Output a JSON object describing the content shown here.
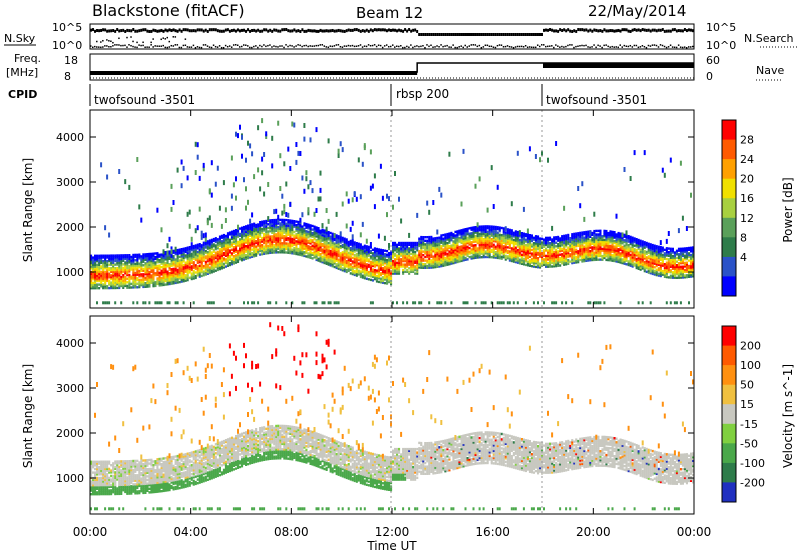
{
  "header": {
    "station": "Blackstone (fitACF)",
    "beam": "Beam 12",
    "date": "22/May/2014"
  },
  "top_panels": {
    "nsky_label": "N.Sky",
    "nsky_ticks": [
      "10^5",
      "10^0"
    ],
    "nsearch_label": "N.Search",
    "nsearch_ticks": [
      "10^5",
      "10^0"
    ],
    "freq_label": "Freq.",
    "freq_unit": "[MHz]",
    "freq_ticks": [
      "18",
      "8"
    ],
    "nave_label": "Nave",
    "nave_ticks": [
      "60",
      "0"
    ],
    "cpid_label": "CPID",
    "cpid_segments": [
      {
        "name": "twofsound -3501",
        "start_h": 0
      },
      {
        "name": "rbsp 200",
        "start_h": 12
      },
      {
        "name": "twofsound -3501",
        "start_h": 18
      }
    ]
  },
  "chart_data": [
    {
      "type": "heatmap",
      "title": "",
      "xlabel": "",
      "ylabel": "Slant Range [km]",
      "xlim_hours": [
        0,
        24
      ],
      "ylim": [
        200,
        4600
      ],
      "yticks": [
        "1000",
        "2000",
        "3000",
        "4000"
      ],
      "colorbar_label": "Power [dB]",
      "colorbar_ticks": [
        "28",
        "24",
        "20",
        "16",
        "12",
        "8",
        "4"
      ],
      "colorbar_colors": [
        "#0000ff",
        "#2a52c8",
        "#2e7c4a",
        "#5aa05a",
        "#a8d040",
        "#f0e000",
        "#ffa000",
        "#ff5a00",
        "#ff0000"
      ]
    },
    {
      "type": "heatmap",
      "title": "",
      "xlabel": "Time UT",
      "ylabel": "Slant Range [km]",
      "xlim_hours": [
        0,
        24
      ],
      "ylim": [
        200,
        4600
      ],
      "xticks": [
        "00:00",
        "04:00",
        "08:00",
        "12:00",
        "16:00",
        "20:00",
        "00:00"
      ],
      "yticks": [
        "1000",
        "2000",
        "3000",
        "4000"
      ],
      "colorbar_label": "Velocity [m s^-1]",
      "colorbar_ticks": [
        "200",
        "100",
        "50",
        "15",
        "-15",
        "-50",
        "-100",
        "-200"
      ],
      "colorbar_colors": [
        "#2030c0",
        "#2e7c4a",
        "#4aa84a",
        "#80d040",
        "#c8c8c0",
        "#f0c040",
        "#ff9010",
        "#ff5a00",
        "#ff0000"
      ]
    }
  ],
  "xaxis_title": "Time UT"
}
